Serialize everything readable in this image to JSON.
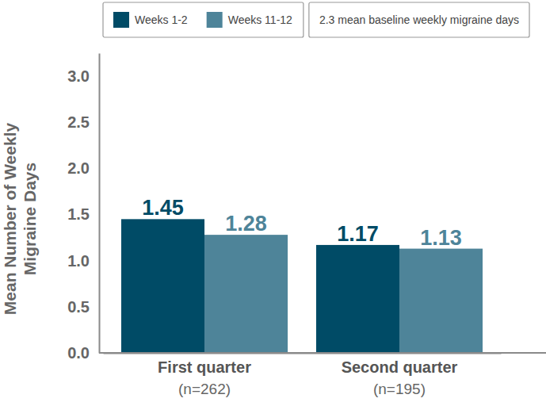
{
  "chart_data": {
    "type": "bar",
    "categories": [
      "First quarter",
      "Second quarter"
    ],
    "category_sublabels": [
      "(n=262)",
      "(n=195)"
    ],
    "series": [
      {
        "name": "Weeks 1-2",
        "color": "#004b66",
        "values": [
          1.45,
          1.17
        ]
      },
      {
        "name": "Weeks 11-12",
        "color": "#4e8499",
        "values": [
          1.28,
          1.13
        ]
      }
    ],
    "y_label": [
      "Mean Number of Weekly",
      "Migraine Days"
    ],
    "annotation": "2.3 mean baseline weekly migraine days",
    "ylim": [
      0,
      3.25
    ],
    "yticks": [
      {
        "value": 0,
        "label": "0.0"
      },
      0.5,
      {
        "value": 1,
        "label": "1.0"
      },
      1.5,
      {
        "value": 2,
        "label": "2.0"
      },
      2.5,
      {
        "value": 3,
        "label": "3.0"
      }
    ],
    "grid": false,
    "legend": "top",
    "data_labels": true
  }
}
